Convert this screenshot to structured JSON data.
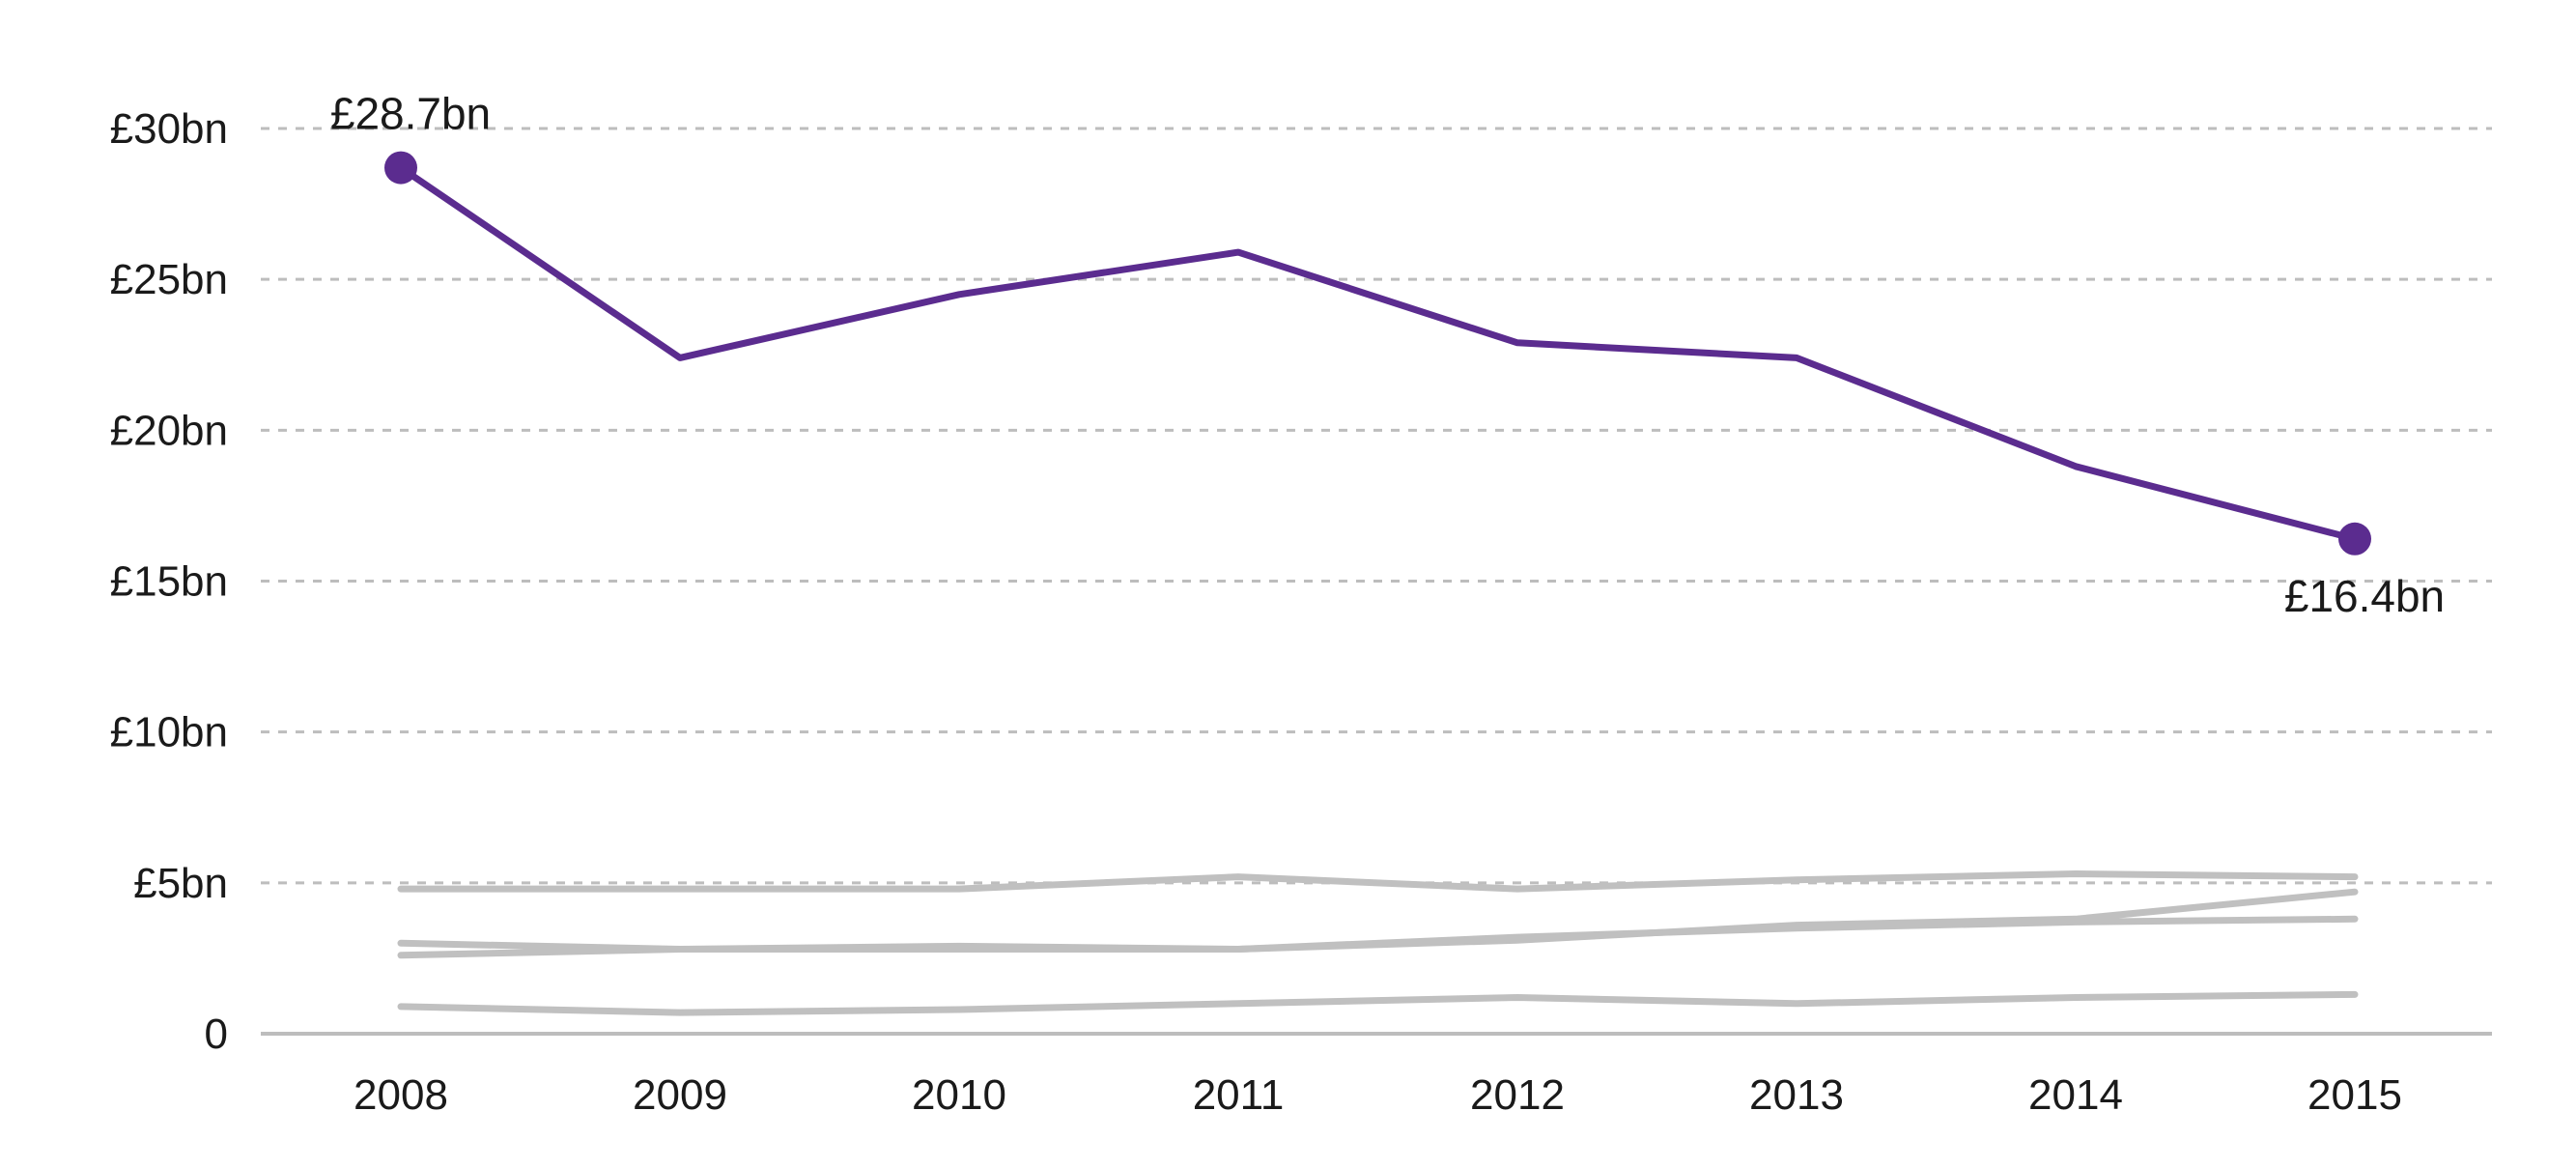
{
  "chart_data": {
    "type": "line",
    "title": "",
    "xlabel": "",
    "ylabel": "",
    "x": [
      "2008",
      "2009",
      "2010",
      "2011",
      "2012",
      "2013",
      "2014",
      "2015"
    ],
    "ylim": [
      0,
      30
    ],
    "yticks": [
      0,
      5,
      10,
      15,
      20,
      25,
      30
    ],
    "ytick_labels": [
      "0",
      "£5bn",
      "£10bn",
      "£15bn",
      "£20bn",
      "£25bn",
      "£30bn"
    ],
    "grid": true,
    "legend": "none",
    "colors": {
      "highlight": "#5b2c8f",
      "muted": "#c0c0c0",
      "gridline": "#bdbdbd"
    },
    "series": [
      {
        "values": [
          28.7,
          22.4,
          24.5,
          25.9,
          22.9,
          22.4,
          18.8,
          16.4
        ],
        "highlight": true
      },
      {
        "values": [
          4.8,
          4.8,
          4.8,
          5.2,
          4.8,
          5.1,
          5.3,
          5.2
        ],
        "highlight": false
      },
      {
        "values": [
          3.0,
          2.8,
          2.8,
          2.8,
          3.1,
          3.6,
          3.8,
          4.7
        ],
        "highlight": false
      },
      {
        "values": [
          2.6,
          2.8,
          2.9,
          2.8,
          3.2,
          3.5,
          3.7,
          3.8
        ],
        "highlight": false
      },
      {
        "values": [
          0.9,
          0.7,
          0.8,
          1.0,
          1.2,
          1.0,
          1.2,
          1.3
        ],
        "highlight": false
      }
    ],
    "annotations": [
      {
        "series": 0,
        "point": 0,
        "text": "£28.7bn"
      },
      {
        "series": 0,
        "point": 7,
        "text": "£16.4bn"
      }
    ]
  }
}
